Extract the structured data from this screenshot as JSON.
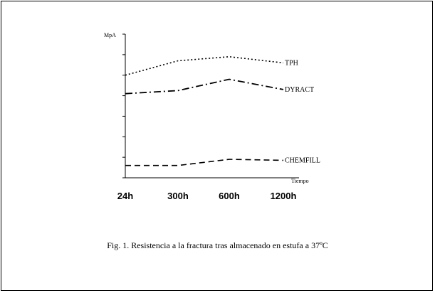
{
  "caption": "Fig. 1. Resistencia a la  fractura tras almacenado en estufa a 37ºC",
  "chart_data": {
    "type": "line",
    "ylabel": "MpA",
    "xlabel": "Tiempo",
    "categories": [
      "24h",
      "300h",
      "600h",
      "1200h"
    ],
    "ylim": [
      0,
      7
    ],
    "yticks": 7,
    "grid": false,
    "legend": "inline-right",
    "series": [
      {
        "name": "TPH",
        "values": [
          5.0,
          5.7,
          5.9,
          5.6
        ],
        "style": "dotted",
        "color": "#000000"
      },
      {
        "name": "DYRACT",
        "values": [
          4.1,
          4.25,
          4.8,
          4.3
        ],
        "style": "dash-dot",
        "color": "#000000"
      },
      {
        "name": "CHEMFILL",
        "values": [
          0.6,
          0.6,
          0.9,
          0.85
        ],
        "style": "dashed",
        "color": "#000000"
      }
    ]
  }
}
